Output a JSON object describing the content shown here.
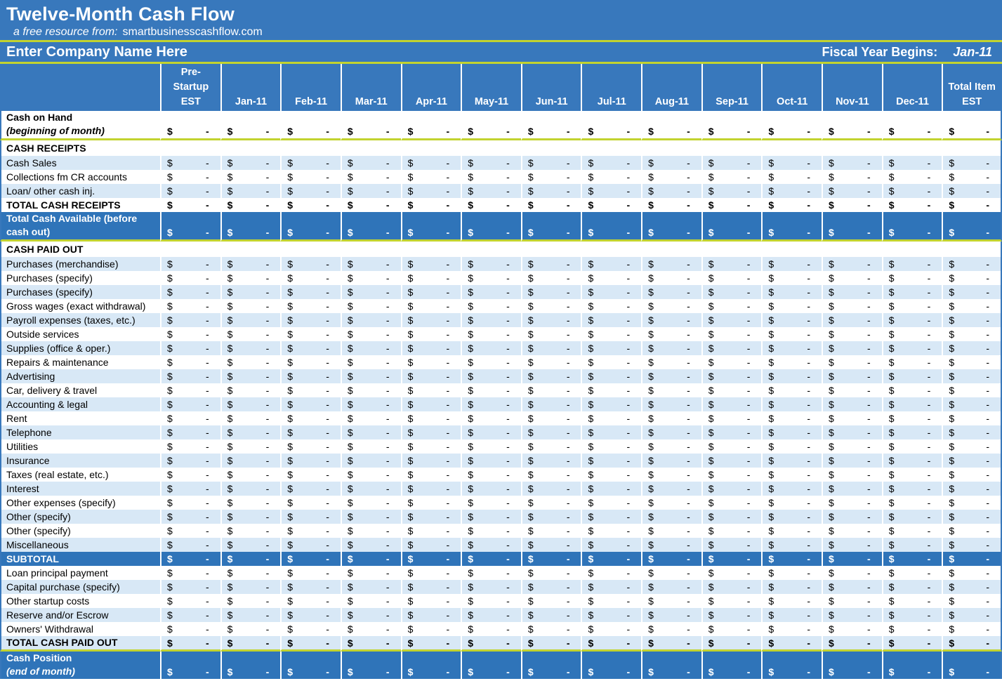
{
  "header": {
    "title": "Twelve-Month Cash Flow",
    "subtitle_prefix": "a free resource from:",
    "subtitle_site": "smartbusinesscashflow.com"
  },
  "company_bar": {
    "company_placeholder": "Enter Company Name Here",
    "fiscal_label": "Fiscal Year Begins:",
    "fiscal_value": "Jan-11"
  },
  "colors": {
    "header_blue": "#3878BC",
    "accent_blue": "#2F74B9",
    "band_blue": "#D8E8F6",
    "divider_green": "#C2D32F",
    "text_light": "#FFFFFF",
    "text_dark": "#000000"
  },
  "table": {
    "cell": {
      "currency": "$",
      "empty": "-"
    },
    "columns": [
      {
        "id": "pre-startup",
        "lines": [
          "Pre-",
          "Startup",
          "EST"
        ]
      },
      {
        "id": "jan-11",
        "lines": [
          "Jan-11"
        ]
      },
      {
        "id": "feb-11",
        "lines": [
          "Feb-11"
        ]
      },
      {
        "id": "mar-11",
        "lines": [
          "Mar-11"
        ]
      },
      {
        "id": "apr-11",
        "lines": [
          "Apr-11"
        ]
      },
      {
        "id": "may-11",
        "lines": [
          "May-11"
        ]
      },
      {
        "id": "jun-11",
        "lines": [
          "Jun-11"
        ]
      },
      {
        "id": "jul-11",
        "lines": [
          "Jul-11"
        ]
      },
      {
        "id": "aug-11",
        "lines": [
          "Aug-11"
        ]
      },
      {
        "id": "sep-11",
        "lines": [
          "Sep-11"
        ]
      },
      {
        "id": "oct-11",
        "lines": [
          "Oct-11"
        ]
      },
      {
        "id": "nov-11",
        "lines": [
          "Nov-11"
        ]
      },
      {
        "id": "dec-11",
        "lines": [
          "Dec-11"
        ]
      },
      {
        "id": "total-item-est",
        "lines": [
          "Total Item",
          "EST"
        ]
      }
    ],
    "rows": [
      {
        "label": "Cash on Hand",
        "sublabel": "(beginning of month)",
        "style": "white",
        "bold": true,
        "money": true,
        "tall": true,
        "yellow_after": true
      },
      {
        "label": "CASH RECEIPTS",
        "style": "white",
        "bold": true,
        "money": false,
        "section": true
      },
      {
        "label": "Cash Sales",
        "style": "band",
        "money": true
      },
      {
        "label": "Collections fm CR accounts",
        "style": "white",
        "money": true
      },
      {
        "label": "Loan/ other cash inj.",
        "style": "band",
        "money": true
      },
      {
        "label": "TOTAL CASH RECEIPTS",
        "style": "white",
        "bold": true,
        "money": true
      },
      {
        "label": "Total Cash Available (before cash out)",
        "style": "blue",
        "bold": true,
        "money": true,
        "tall": true,
        "yellow_after": true
      },
      {
        "label": "CASH PAID OUT",
        "style": "white",
        "bold": true,
        "money": false,
        "section": true
      },
      {
        "label": "Purchases (merchandise)",
        "style": "band",
        "money": true
      },
      {
        "label": "Purchases (specify)",
        "style": "white",
        "money": true
      },
      {
        "label": "Purchases (specify)",
        "style": "band",
        "money": true
      },
      {
        "label": "Gross wages (exact withdrawal)",
        "style": "white",
        "money": true
      },
      {
        "label": "Payroll expenses (taxes, etc.)",
        "style": "band",
        "money": true
      },
      {
        "label": "Outside services",
        "style": "white",
        "money": true
      },
      {
        "label": "Supplies (office & oper.)",
        "style": "band",
        "money": true
      },
      {
        "label": "Repairs & maintenance",
        "style": "white",
        "money": true
      },
      {
        "label": "Advertising",
        "style": "band",
        "money": true
      },
      {
        "label": "Car, delivery & travel",
        "style": "white",
        "money": true
      },
      {
        "label": "Accounting & legal",
        "style": "band",
        "money": true
      },
      {
        "label": "Rent",
        "style": "white",
        "money": true
      },
      {
        "label": "Telephone",
        "style": "band",
        "money": true
      },
      {
        "label": "Utilities",
        "style": "white",
        "money": true
      },
      {
        "label": "Insurance",
        "style": "band",
        "money": true
      },
      {
        "label": "Taxes (real estate, etc.)",
        "style": "white",
        "money": true
      },
      {
        "label": "Interest",
        "style": "band",
        "money": true
      },
      {
        "label": "Other expenses (specify)",
        "style": "white",
        "money": true
      },
      {
        "label": "Other (specify)",
        "style": "band",
        "money": true
      },
      {
        "label": "Other (specify)",
        "style": "white",
        "money": true
      },
      {
        "label": "Miscellaneous",
        "style": "band",
        "money": true
      },
      {
        "label": "SUBTOTAL",
        "style": "blue",
        "bold": true,
        "money": true
      },
      {
        "label": "Loan principal payment",
        "style": "white",
        "money": true
      },
      {
        "label": "Capital purchase (specify)",
        "style": "band",
        "money": true
      },
      {
        "label": "Other startup costs",
        "style": "white",
        "money": true
      },
      {
        "label": "Reserve and/or Escrow",
        "style": "band",
        "money": true
      },
      {
        "label": "Owners' Withdrawal",
        "style": "white",
        "money": true
      },
      {
        "label": "TOTAL CASH PAID OUT",
        "style": "band",
        "bold": true,
        "money": true,
        "yellow_after": true
      },
      {
        "label": "Cash Position",
        "sublabel": "(end of month)",
        "style": "blue",
        "bold": true,
        "money": true,
        "tall": true
      }
    ]
  }
}
